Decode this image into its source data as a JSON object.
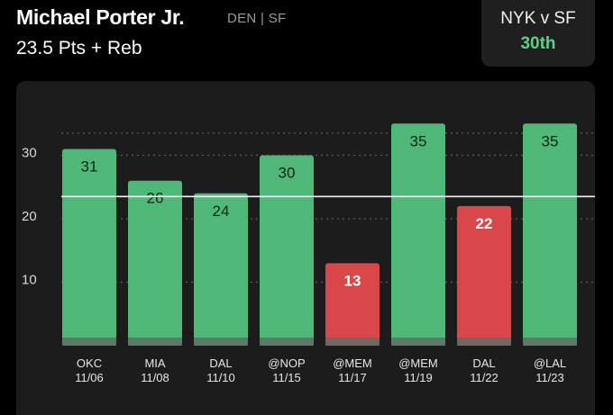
{
  "header": {
    "player_name": "Michael Porter Jr.",
    "team_info": "DEN | SF",
    "stat_line": "23.5 Pts + Reb"
  },
  "matchup": {
    "title": "NYK v SF",
    "rank": "30th"
  },
  "colors": {
    "over": "#4fb878",
    "under": "#d9474b",
    "card_bg": "#1c1c1c",
    "rank_text": "#5cd08a"
  },
  "chart_data": {
    "type": "bar",
    "categories": [
      "OKC",
      "MIA",
      "DAL",
      "@NOP",
      "@MEM",
      "@MEM",
      "DAL",
      "@LAL"
    ],
    "dates": [
      "11/06",
      "11/08",
      "11/10",
      "11/15",
      "11/17",
      "11/19",
      "11/22",
      "11/23"
    ],
    "values": [
      31,
      26,
      24,
      30,
      13,
      35,
      22,
      35
    ],
    "line_value": 23.5,
    "ylim": [
      0,
      35
    ],
    "yticks": [
      10,
      20,
      30
    ],
    "grid": true
  }
}
